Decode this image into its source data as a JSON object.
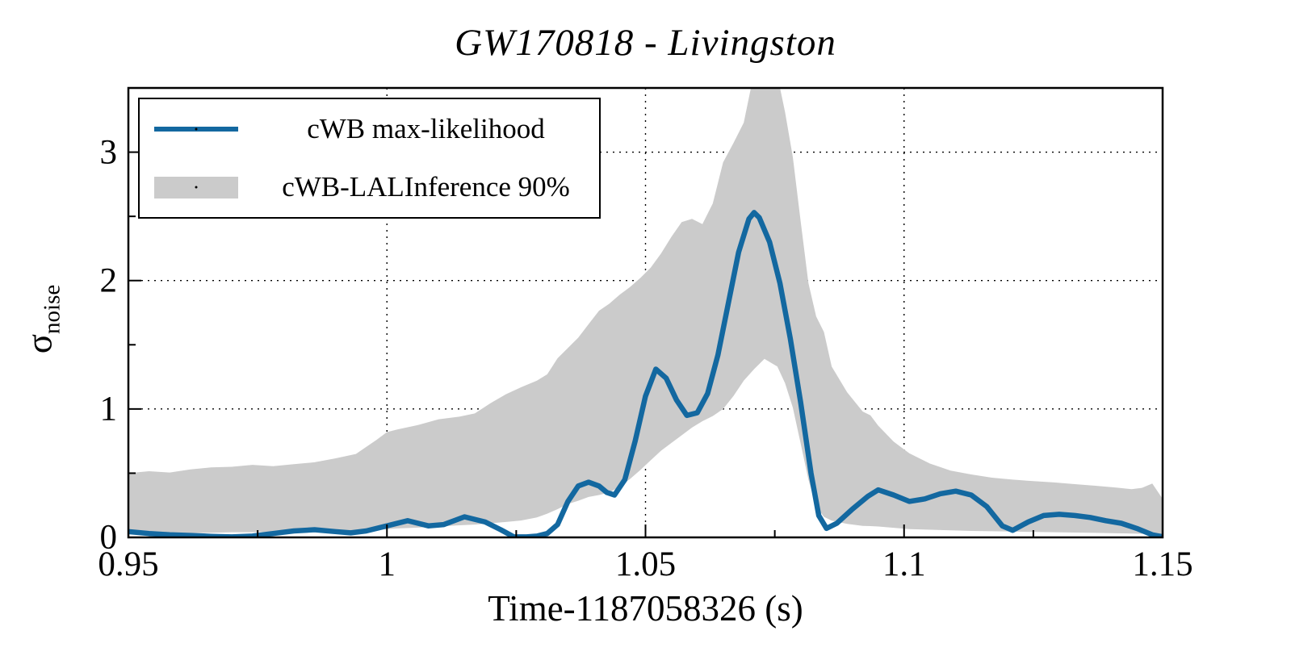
{
  "title": "GW170818 - Livingston",
  "colors": {
    "line": "#1368a0",
    "band": "#cbcbcb",
    "axis": "#000000",
    "background": "#ffffff"
  },
  "legend": {
    "items": [
      {
        "label": "cWB max-likelihood",
        "swatch": "line",
        "color": "#1368a0"
      },
      {
        "label": "cWB-LALInference 90%",
        "swatch": "band",
        "color": "#cbcbcb"
      }
    ]
  },
  "chart_data": {
    "type": "line",
    "title": "GW170818 - Livingston",
    "xlabel": "Time-1187058326 (s)",
    "ylabel_base": "σ",
    "ylabel_sub": "noise",
    "xlim": [
      0.95,
      1.15
    ],
    "ylim": [
      0,
      3.5
    ],
    "x_major": [
      0.95,
      1.0,
      1.05,
      1.1,
      1.15
    ],
    "x_major_labels": [
      "0.95",
      "1",
      "1.05",
      "1.1",
      "1.15"
    ],
    "x_minor": [
      0.975,
      1.025,
      1.075,
      1.125
    ],
    "y_major": [
      0,
      1,
      2,
      3
    ],
    "y_major_labels": [
      "0",
      "1",
      "2",
      "3"
    ],
    "y_minor": [
      0.5,
      1.5,
      2.5
    ],
    "grid_x": [
      1.0,
      1.05,
      1.1
    ],
    "grid_y": [
      1,
      2,
      3
    ],
    "grid_style": "dotted",
    "legend_position": "upper left",
    "series": [
      {
        "name": "cWB max-likelihood",
        "type": "line",
        "color": "#1368a0",
        "points": [
          [
            0.95,
            0.045
          ],
          [
            0.954,
            0.03
          ],
          [
            0.958,
            0.02
          ],
          [
            0.962,
            0.015
          ],
          [
            0.966,
            0.008
          ],
          [
            0.97,
            0.004
          ],
          [
            0.974,
            0.01
          ],
          [
            0.978,
            0.03
          ],
          [
            0.982,
            0.05
          ],
          [
            0.986,
            0.06
          ],
          [
            0.99,
            0.045
          ],
          [
            0.993,
            0.035
          ],
          [
            0.996,
            0.05
          ],
          [
            1.0,
            0.09
          ],
          [
            1.004,
            0.13
          ],
          [
            1.008,
            0.09
          ],
          [
            1.011,
            0.1
          ],
          [
            1.015,
            0.16
          ],
          [
            1.019,
            0.12
          ],
          [
            1.022,
            0.06
          ],
          [
            1.0245,
            0.005
          ],
          [
            1.027,
            0.004
          ],
          [
            1.029,
            0.01
          ],
          [
            1.031,
            0.03
          ],
          [
            1.033,
            0.1
          ],
          [
            1.035,
            0.28
          ],
          [
            1.037,
            0.4
          ],
          [
            1.039,
            0.43
          ],
          [
            1.041,
            0.4
          ],
          [
            1.0425,
            0.35
          ],
          [
            1.044,
            0.33
          ],
          [
            1.046,
            0.45
          ],
          [
            1.048,
            0.75
          ],
          [
            1.05,
            1.1
          ],
          [
            1.052,
            1.31
          ],
          [
            1.054,
            1.24
          ],
          [
            1.056,
            1.07
          ],
          [
            1.058,
            0.95
          ],
          [
            1.06,
            0.97
          ],
          [
            1.062,
            1.12
          ],
          [
            1.064,
            1.42
          ],
          [
            1.066,
            1.82
          ],
          [
            1.068,
            2.22
          ],
          [
            1.07,
            2.48
          ],
          [
            1.071,
            2.53
          ],
          [
            1.072,
            2.49
          ],
          [
            1.074,
            2.3
          ],
          [
            1.076,
            1.98
          ],
          [
            1.078,
            1.55
          ],
          [
            1.08,
            1.05
          ],
          [
            1.082,
            0.5
          ],
          [
            1.0835,
            0.17
          ],
          [
            1.085,
            0.07
          ],
          [
            1.087,
            0.11
          ],
          [
            1.09,
            0.22
          ],
          [
            1.093,
            0.32
          ],
          [
            1.095,
            0.37
          ],
          [
            1.098,
            0.33
          ],
          [
            1.101,
            0.28
          ],
          [
            1.104,
            0.3
          ],
          [
            1.107,
            0.34
          ],
          [
            1.11,
            0.36
          ],
          [
            1.113,
            0.33
          ],
          [
            1.116,
            0.24
          ],
          [
            1.119,
            0.09
          ],
          [
            1.121,
            0.055
          ],
          [
            1.124,
            0.12
          ],
          [
            1.127,
            0.17
          ],
          [
            1.13,
            0.18
          ],
          [
            1.133,
            0.17
          ],
          [
            1.136,
            0.155
          ],
          [
            1.139,
            0.13
          ],
          [
            1.142,
            0.11
          ],
          [
            1.145,
            0.07
          ],
          [
            1.148,
            0.02
          ],
          [
            1.15,
            0.005
          ]
        ]
      },
      {
        "name": "cWB-LALInference 90%",
        "type": "band",
        "color": "#cbcbcb",
        "points": [
          [
            0.95,
            0.03,
            0.5
          ],
          [
            0.954,
            0.03,
            0.515
          ],
          [
            0.958,
            0.034,
            0.505
          ],
          [
            0.962,
            0.034,
            0.53
          ],
          [
            0.966,
            0.036,
            0.545
          ],
          [
            0.97,
            0.04,
            0.55
          ],
          [
            0.974,
            0.04,
            0.565
          ],
          [
            0.978,
            0.044,
            0.555
          ],
          [
            0.982,
            0.046,
            0.57
          ],
          [
            0.986,
            0.05,
            0.585
          ],
          [
            0.99,
            0.052,
            0.615
          ],
          [
            0.994,
            0.056,
            0.65
          ],
          [
            0.998,
            0.062,
            0.76
          ],
          [
            1.0,
            0.065,
            0.82
          ],
          [
            1.002,
            0.07,
            0.84
          ],
          [
            1.006,
            0.076,
            0.875
          ],
          [
            1.01,
            0.085,
            0.92
          ],
          [
            1.014,
            0.094,
            0.94
          ],
          [
            1.017,
            0.1,
            0.965
          ],
          [
            1.02,
            0.11,
            1.045
          ],
          [
            1.023,
            0.12,
            1.115
          ],
          [
            1.026,
            0.132,
            1.17
          ],
          [
            1.029,
            0.155,
            1.22
          ],
          [
            1.031,
            0.185,
            1.27
          ],
          [
            1.033,
            0.22,
            1.395
          ],
          [
            1.035,
            0.26,
            1.475
          ],
          [
            1.037,
            0.285,
            1.555
          ],
          [
            1.039,
            0.315,
            1.66
          ],
          [
            1.041,
            0.33,
            1.765
          ],
          [
            1.043,
            0.35,
            1.82
          ],
          [
            1.045,
            0.395,
            1.89
          ],
          [
            1.047,
            0.455,
            1.95
          ],
          [
            1.049,
            0.525,
            2.02
          ],
          [
            1.051,
            0.6,
            2.1
          ],
          [
            1.053,
            0.675,
            2.21
          ],
          [
            1.055,
            0.735,
            2.34
          ],
          [
            1.057,
            0.795,
            2.455
          ],
          [
            1.059,
            0.855,
            2.48
          ],
          [
            1.061,
            0.905,
            2.44
          ],
          [
            1.063,
            0.945,
            2.6
          ],
          [
            1.065,
            1.0,
            2.92
          ],
          [
            1.067,
            1.1,
            3.07
          ],
          [
            1.069,
            1.22,
            3.23
          ],
          [
            1.071,
            1.31,
            3.62
          ],
          [
            1.073,
            1.39,
            3.75
          ],
          [
            1.0755,
            1.33,
            3.6
          ],
          [
            1.077,
            1.2,
            3.31
          ],
          [
            1.0785,
            1.01,
            2.96
          ],
          [
            1.08,
            0.73,
            2.46
          ],
          [
            1.0815,
            0.45,
            1.98
          ],
          [
            1.083,
            0.24,
            1.72
          ],
          [
            1.0845,
            0.16,
            1.6
          ],
          [
            1.086,
            0.13,
            1.33
          ],
          [
            1.089,
            0.105,
            1.13
          ],
          [
            1.092,
            0.09,
            0.98
          ],
          [
            1.0935,
            0.088,
            0.95
          ],
          [
            1.095,
            0.085,
            0.87
          ],
          [
            1.098,
            0.075,
            0.745
          ],
          [
            1.101,
            0.065,
            0.655
          ],
          [
            1.105,
            0.06,
            0.575
          ],
          [
            1.109,
            0.055,
            0.52
          ],
          [
            1.113,
            0.05,
            0.49
          ],
          [
            1.117,
            0.048,
            0.465
          ],
          [
            1.121,
            0.045,
            0.45
          ],
          [
            1.125,
            0.042,
            0.438
          ],
          [
            1.129,
            0.04,
            0.428
          ],
          [
            1.133,
            0.038,
            0.415
          ],
          [
            1.137,
            0.035,
            0.402
          ],
          [
            1.141,
            0.032,
            0.388
          ],
          [
            1.144,
            0.03,
            0.376
          ],
          [
            1.146,
            0.028,
            0.386
          ],
          [
            1.148,
            0.026,
            0.42
          ],
          [
            1.1495,
            0.025,
            0.33
          ],
          [
            1.15,
            0.025,
            0.3
          ]
        ]
      }
    ]
  }
}
